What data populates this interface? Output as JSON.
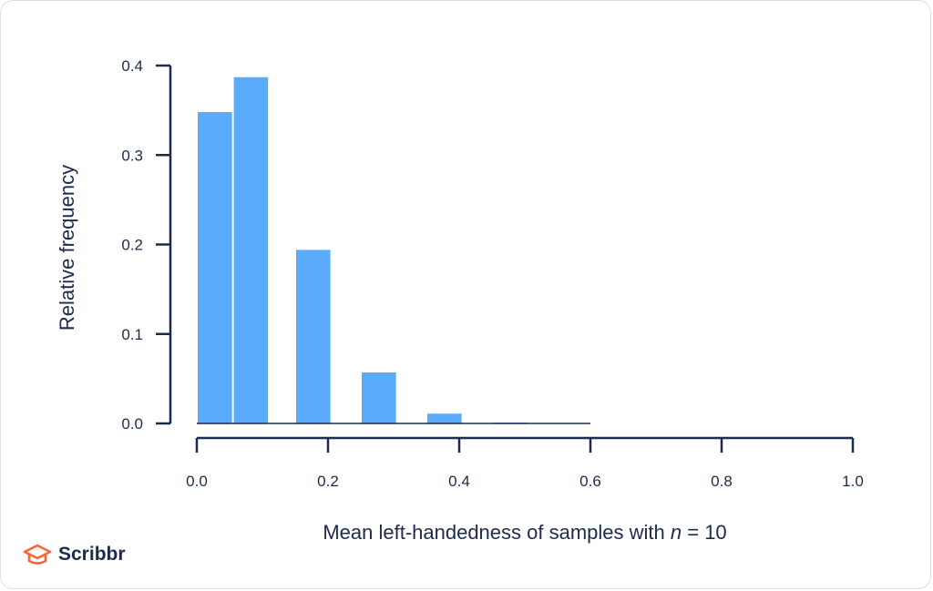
{
  "chart_data": {
    "type": "bar",
    "title": "",
    "xlabel_prefix": "Mean left-handedness of samples with ",
    "xlabel_var": "n",
    "xlabel_suffix": " = 10",
    "ylabel": "Relative frequency",
    "xlim": [
      0.0,
      1.0
    ],
    "ylim": [
      0.0,
      0.4
    ],
    "x_ticks": [
      "0.0",
      "0.2",
      "0.4",
      "0.6",
      "0.8",
      "1.0"
    ],
    "y_ticks": [
      "0.0",
      "0.1",
      "0.2",
      "0.3",
      "0.4"
    ],
    "bars": [
      {
        "x_start": 0.0,
        "x_end": 0.055,
        "value": 0.348
      },
      {
        "x_start": 0.055,
        "x_end": 0.11,
        "value": 0.387
      },
      {
        "x_start": 0.15,
        "x_end": 0.205,
        "value": 0.194
      },
      {
        "x_start": 0.25,
        "x_end": 0.305,
        "value": 0.057
      },
      {
        "x_start": 0.35,
        "x_end": 0.405,
        "value": 0.011
      },
      {
        "x_start": 0.45,
        "x_end": 0.505,
        "value": 0.001
      },
      {
        "x_start": 0.55,
        "x_end": 0.6,
        "value": 0.0
      }
    ],
    "bar_color": "#5aabfa",
    "axis_color": "#1b2b4e",
    "grid": false
  },
  "brand": {
    "name": "Scribbr",
    "logo_color": "#f2663a"
  }
}
